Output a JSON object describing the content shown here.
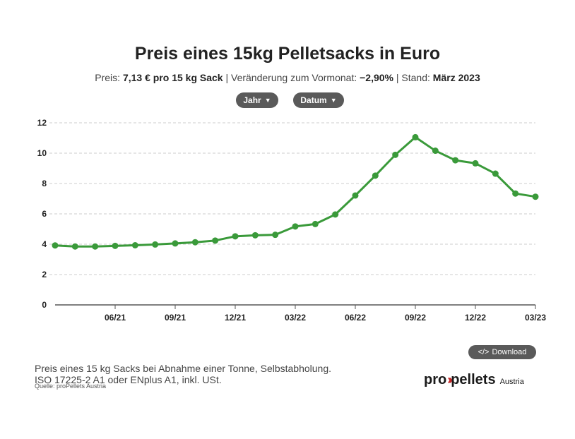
{
  "header": {
    "title": "Preis eines 15kg Pelletsacks in Euro",
    "price_label": "Preis:",
    "price_value": "7,13 € pro 15 kg Sack",
    "change_label": "Veränderung zum Vormonat:",
    "change_value": "−2,90%",
    "date_label": "Stand:",
    "date_value": "März 2023"
  },
  "controls": {
    "year_label": "Jahr",
    "date_label": "Datum",
    "download_label": "Download",
    "download_icon": "code-icon"
  },
  "footer": {
    "note_line1": "Preis eines 15 kg Sacks bei Abnahme einer Tonne, Selbstabholung.",
    "note_line2": "ISO 17225-2 A1 oder ENplus A1, inkl. USt.",
    "source": "Quelle: proPellets Austria",
    "logo_pro": "pro",
    "logo_pellets": "pellets",
    "logo_country": "Austria"
  },
  "colors": {
    "series": "#3a9a3a",
    "grid": "#cccccc",
    "axis": "#555555"
  },
  "chart_data": {
    "type": "line",
    "title": "Preis eines 15kg Pelletsacks in Euro",
    "xlabel": "",
    "ylabel": "",
    "ylim": [
      0,
      12
    ],
    "yticks": [
      0,
      2,
      4,
      6,
      8,
      10,
      12
    ],
    "grid": true,
    "x": [
      "2021-03",
      "2021-04",
      "2021-05",
      "2021-06",
      "2021-07",
      "2021-08",
      "2021-09",
      "2021-10",
      "2021-11",
      "2021-12",
      "2022-01",
      "2022-02",
      "2022-03",
      "2022-04",
      "2022-05",
      "2022-06",
      "2022-07",
      "2022-08",
      "2022-09",
      "2022-10",
      "2022-11",
      "2022-12",
      "2023-01",
      "2023-02",
      "2023-03"
    ],
    "xticks": [
      {
        "x": "2021-06",
        "label": "06/21"
      },
      {
        "x": "2021-09",
        "label": "09/21"
      },
      {
        "x": "2021-12",
        "label": "12/21"
      },
      {
        "x": "2022-03",
        "label": "03/22"
      },
      {
        "x": "2022-06",
        "label": "06/22"
      },
      {
        "x": "2022-09",
        "label": "09/22"
      },
      {
        "x": "2022-12",
        "label": "12/22"
      },
      {
        "x": "2023-03",
        "label": "03/23"
      }
    ],
    "series": [
      {
        "values": [
          3.92,
          3.85,
          3.85,
          3.89,
          3.93,
          3.98,
          4.05,
          4.13,
          4.24,
          4.52,
          4.59,
          4.62,
          5.17,
          5.33,
          5.96,
          7.21,
          8.52,
          9.89,
          11.05,
          10.16,
          9.53,
          9.33,
          8.65,
          7.34,
          7.13
        ]
      }
    ]
  }
}
